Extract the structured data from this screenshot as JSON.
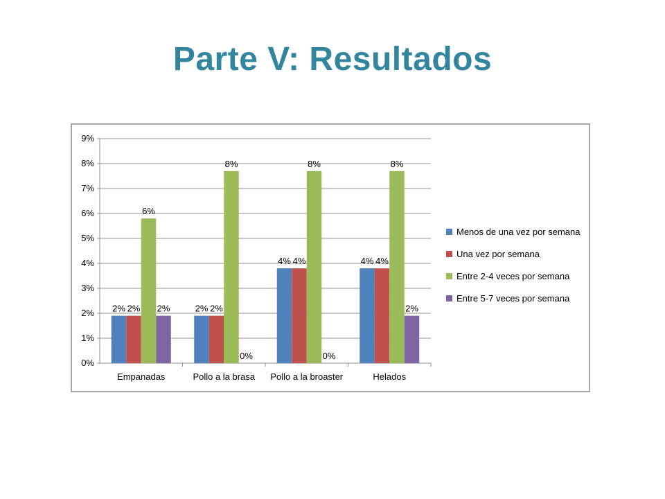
{
  "slide": {
    "title": "Parte V: Resultados"
  },
  "chart_data": {
    "type": "bar",
    "categories": [
      "Empanadas",
      "Pollo a la brasa",
      "Pollo a la broaster",
      "Helados"
    ],
    "series": [
      {
        "name": "Menos de una vez por semana",
        "color": "#4f81bd",
        "values": [
          1.9,
          1.9,
          3.8,
          3.8
        ],
        "labels": [
          "2%",
          "2%",
          "4%",
          "4%"
        ]
      },
      {
        "name": "Una vez por semana",
        "color": "#c0504d",
        "values": [
          1.9,
          1.9,
          3.8,
          3.8
        ],
        "labels": [
          "2%",
          "2%",
          "4%",
          "4%"
        ]
      },
      {
        "name": "Entre 2-4 veces por semana",
        "color": "#9bbb59",
        "values": [
          5.8,
          7.7,
          7.7,
          7.7
        ],
        "labels": [
          "6%",
          "8%",
          "8%",
          "8%"
        ]
      },
      {
        "name": "Entre 5-7 veces por semana",
        "color": "#8064a2",
        "values": [
          1.9,
          0,
          0,
          1.9
        ],
        "labels": [
          "2%",
          "0%",
          "0%",
          "2%"
        ]
      }
    ],
    "y_ticks": [
      "0%",
      "1%",
      "2%",
      "3%",
      "4%",
      "5%",
      "6%",
      "7%",
      "8%",
      "9%"
    ],
    "ylim": [
      0,
      9
    ],
    "grid": true,
    "legend_position": "right",
    "title": "",
    "xlabel": "",
    "ylabel": ""
  }
}
